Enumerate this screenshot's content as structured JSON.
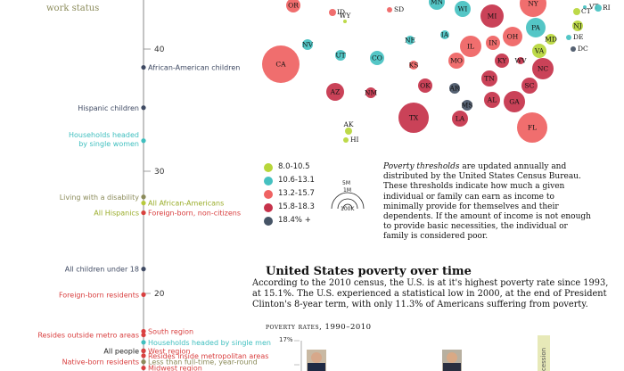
{
  "header": {
    "subtitle": "work status"
  },
  "chart_data": [
    {
      "type": "scatter",
      "title": "",
      "xlabel": "",
      "ylabel": "",
      "ylim": [
        13,
        46
      ],
      "y_ticks": [
        40,
        30,
        20
      ],
      "points": [
        {
          "label": "African-American children",
          "y": 38.5,
          "side": "right",
          "color": "#3f4a63"
        },
        {
          "label": "Hispanic children",
          "y": 35.2,
          "side": "left",
          "color": "#3f4a63"
        },
        {
          "label": "Households headed by single women",
          "y": 32.5,
          "side": "left",
          "color": "#3fbfbf"
        },
        {
          "label": "Living with a disability",
          "y": 27.9,
          "side": "left",
          "color": "#8b8b5a"
        },
        {
          "label": "All African-Americans",
          "y": 27.4,
          "side": "right",
          "color": "#b7c93a"
        },
        {
          "label": "All Hispanics",
          "y": 26.6,
          "side": "left",
          "color": "#b7c93a"
        },
        {
          "label": "Foreign-born, non-citizens",
          "y": 26.6,
          "side": "right",
          "color": "#d94040"
        },
        {
          "label": "All children under 18",
          "y": 22.0,
          "side": "left",
          "color": "#3f4a63"
        },
        {
          "label": "Foreign-born residents",
          "y": 19.9,
          "side": "left",
          "color": "#d94040"
        },
        {
          "label": "South region",
          "y": 16.9,
          "side": "right",
          "color": "#d94040"
        },
        {
          "label": "Resides outside metro areas",
          "y": 16.6,
          "side": "left",
          "color": "#d94040"
        },
        {
          "label": "Households headed by single men",
          "y": 16.0,
          "side": "right",
          "color": "#3fbfbf"
        },
        {
          "label": "All people",
          "y": 15.3,
          "side": "left",
          "color": "#222222"
        },
        {
          "label": "West region",
          "y": 15.3,
          "side": "right",
          "color": "#d94040"
        },
        {
          "label": "Resides inside metropolitan areas",
          "y": 14.9,
          "side": "right",
          "color": "#d94040"
        },
        {
          "label": "Native-born residents",
          "y": 14.4,
          "side": "left",
          "color": "#d94040"
        },
        {
          "label": "Less than full-time, year-round",
          "y": 14.4,
          "side": "right",
          "color": "#8b8b5a"
        },
        {
          "label": "Midwest region",
          "y": 13.9,
          "side": "right",
          "color": "#d94040"
        }
      ]
    },
    {
      "type": "scatter",
      "title": "",
      "legend": [
        {
          "label": "8.0-10.5",
          "color": "#b7d63a"
        },
        {
          "label": "10.6-13.1",
          "color": "#45c1c1"
        },
        {
          "label": "13.2-15.7",
          "color": "#ef6262"
        },
        {
          "label": "15.8-18.3",
          "color": "#c6324a"
        },
        {
          "label": "18.4% +",
          "color": "#465466"
        }
      ],
      "size_legend": [
        "5M",
        "1M",
        "100K"
      ],
      "states": [
        {
          "abbr": "OR",
          "color": "#ef6262"
        },
        {
          "abbr": "ID",
          "color": "#ef6262"
        },
        {
          "abbr": "WY",
          "color": "#b7d63a"
        },
        {
          "abbr": "SD",
          "color": "#ef6262"
        },
        {
          "abbr": "MN",
          "color": "#45c1c1"
        },
        {
          "abbr": "WI",
          "color": "#45c1c1"
        },
        {
          "abbr": "MI",
          "color": "#c6324a"
        },
        {
          "abbr": "NY",
          "color": "#ef6262"
        },
        {
          "abbr": "VT",
          "color": "#45c1c1"
        },
        {
          "abbr": "RI",
          "color": "#45c1c1"
        },
        {
          "abbr": "CT",
          "color": "#b7d63a"
        },
        {
          "abbr": "PA",
          "color": "#45c1c1"
        },
        {
          "abbr": "NJ",
          "color": "#b7d63a"
        },
        {
          "abbr": "MD",
          "color": "#b7d63a"
        },
        {
          "abbr": "DE",
          "color": "#45c1c1"
        },
        {
          "abbr": "DC",
          "color": "#465466"
        },
        {
          "abbr": "NV",
          "color": "#45c1c1"
        },
        {
          "abbr": "UT",
          "color": "#45c1c1"
        },
        {
          "abbr": "CO",
          "color": "#45c1c1"
        },
        {
          "abbr": "NE",
          "color": "#45c1c1"
        },
        {
          "abbr": "IA",
          "color": "#45c1c1"
        },
        {
          "abbr": "IL",
          "color": "#ef6262"
        },
        {
          "abbr": "IN",
          "color": "#ef6262"
        },
        {
          "abbr": "OH",
          "color": "#ef6262"
        },
        {
          "abbr": "VA",
          "color": "#b7d63a"
        },
        {
          "abbr": "CA",
          "color": "#ef6262"
        },
        {
          "abbr": "KS",
          "color": "#ef6262"
        },
        {
          "abbr": "MO",
          "color": "#ef6262"
        },
        {
          "abbr": "KY",
          "color": "#c6324a"
        },
        {
          "abbr": "WV",
          "color": "#c6324a"
        },
        {
          "abbr": "NC",
          "color": "#c6324a"
        },
        {
          "abbr": "AZ",
          "color": "#c6324a"
        },
        {
          "abbr": "NM",
          "color": "#c6324a"
        },
        {
          "abbr": "OK",
          "color": "#c6324a"
        },
        {
          "abbr": "AR",
          "color": "#465466"
        },
        {
          "abbr": "TN",
          "color": "#c6324a"
        },
        {
          "abbr": "SC",
          "color": "#c6324a"
        },
        {
          "abbr": "AL",
          "color": "#c6324a"
        },
        {
          "abbr": "MS",
          "color": "#465466"
        },
        {
          "abbr": "GA",
          "color": "#c6324a"
        },
        {
          "abbr": "TX",
          "color": "#c6324a"
        },
        {
          "abbr": "LA",
          "color": "#c6324a"
        },
        {
          "abbr": "FL",
          "color": "#ef6262"
        },
        {
          "abbr": "AK",
          "color": "#b7d63a"
        },
        {
          "abbr": "HI",
          "color": "#b7d63a"
        }
      ]
    },
    {
      "type": "bar",
      "title": "poverty rates, 1990–2010",
      "y_tick": "17%",
      "partial_label": "cession"
    }
  ],
  "note": {
    "term": "Poverty thresholds",
    "text": " are updated annually and distributed by the United States Census Bureau.  These thresholds indicate how much a given individual or family can earn as income to minimally provide for themselves and their dependents.  If the amount of income is not enough to provide basic necessities, the individual or family is considered poor."
  },
  "section": {
    "title": "United States poverty over time",
    "body": "According to the 2010 census, the U.S. is at it's highest poverty rate since 1993, at 15.1%.  The U.S. experienced a statistical low in 2000, at the end of President Clinton's 8-year term, with only 11.3% of Americans suffering from poverty."
  }
}
